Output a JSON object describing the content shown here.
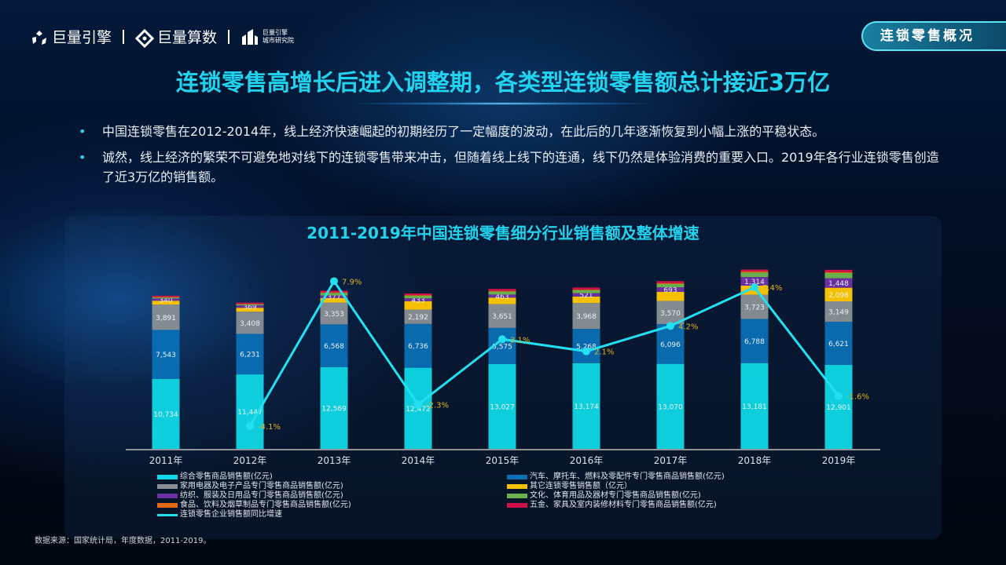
{
  "header": {
    "logos": [
      "巨量引擎",
      "巨量算数",
      "巨量引擎",
      "城市研究院"
    ],
    "tag": "连锁零售概况"
  },
  "title": "连锁零售高增长后进入调整期，各类型连锁零售额总计接近3万亿",
  "bullets": [
    "中国连锁零售在2012-2014年，线上经济快速崛起的初期经历了一定幅度的波动，在此后的几年逐渐恢复到小幅上涨的平稳状态。",
    "诚然，线上经济的繁荣不可避免地对线下的连锁零售带来冲击，但随着线上线下的连通，线下仍然是体验消费的重要入口。2019年各行业连锁零售创造了近3万亿的销售额。"
  ],
  "source": "数据来源：国家统计局，年度数据，2011-2019。",
  "chart_data": {
    "type": "bar",
    "stacked": true,
    "title": "2011-2019年中国连锁零售细分行业销售额及整体增速",
    "categories": [
      "2011年",
      "2012年",
      "2013年",
      "2014年",
      "2015年",
      "2016年",
      "2017年",
      "2018年",
      "2019年"
    ],
    "legend_placement": "bottom",
    "series": [
      {
        "name": "综合零售商品销售额(亿元)",
        "color": "#10d8e6",
        "values": [
          10734,
          11447,
          12569,
          12472,
          13027,
          13174,
          13070,
          13181,
          12901
        ],
        "labeled": true
      },
      {
        "name": "汽车、摩托车、燃料及零配件专门零售商品销售额(亿元)",
        "color": "#0a6fb5",
        "values": [
          7543,
          6231,
          6568,
          6736,
          5575,
          5268,
          6096,
          6788,
          6621
        ],
        "labeled": true
      },
      {
        "name": "家用电器及电子产品专门零售商品销售额(亿元)",
        "color": "#8a9096",
        "values": [
          3891,
          3408,
          3353,
          2192,
          3651,
          3968,
          3570,
          3723,
          3149
        ],
        "labeled": true
      },
      {
        "name": "其它连锁零售销售额（亿元）",
        "color": "#f5c000",
        "values": [
          600,
          600,
          700,
          1300,
          1000,
          1000,
          1400,
          1400,
          2098
        ],
        "labeled_index": [
          8
        ]
      },
      {
        "name": "纺织、服装及日用品专门零售商品销售额(亿元)",
        "color": "#6a2fa0",
        "values": [
          340,
          369,
          377,
          433,
          463,
          521,
          693,
          1314,
          1448
        ],
        "labeled": true
      },
      {
        "name": "文化、体育用品及器材专门零售商品销售额(亿元)",
        "color": "#6ab04c",
        "values": [
          150,
          150,
          400,
          400,
          450,
          450,
          500,
          700,
          800
        ]
      },
      {
        "name": "食品、饮料及烟草制品专门零售商品销售额(亿元)",
        "color": "#e06a10",
        "values": [
          80,
          80,
          100,
          100,
          120,
          120,
          150,
          150,
          150
        ]
      },
      {
        "name": "五金、家具及室内装修材料专门零售商品销售额(亿元)",
        "color": "#d0104a",
        "values": [
          200,
          200,
          250,
          250,
          300,
          300,
          300,
          300,
          350
        ]
      }
    ],
    "line": {
      "name": "连锁零售企业销售额同比增速",
      "color": "#22e0f0",
      "unit": "%",
      "values": [
        null,
        -4.1,
        7.9,
        -2.3,
        3.1,
        2.1,
        4.2,
        7.4,
        -1.6
      ],
      "labels": [
        "",
        "-4.1%",
        "7.9%",
        "-2.3%",
        "3.1%",
        "2.1%",
        "4.2%",
        "7.4%",
        "-1.6%"
      ]
    },
    "legend": [
      "综合零售商品销售额(亿元)",
      "汽车、摩托车、燃料及零配件专门零售商品销售额(亿元)",
      "家用电器及电子产品专门零售商品销售额(亿元)",
      "其它连锁零售销售额（亿元）",
      "纺织、服装及日用品专门零售商品销售额(亿元)",
      "文化、体育用品及器材专门零售商品销售额(亿元)",
      "食品、饮料及烟草制品专门零售商品销售额(亿元)",
      "五金、家具及室内装修材料专门零售商品销售额(亿元)",
      "连锁零售企业销售额同比增速"
    ]
  }
}
